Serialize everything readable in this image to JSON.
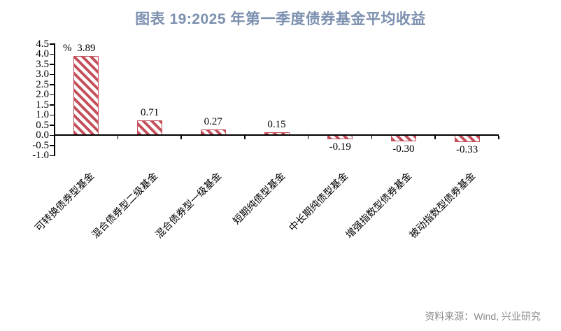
{
  "title": "图表 19:2025 年第一季度债券基金平均收益",
  "source": "资料来源：Wind, 兴业研究",
  "colors": {
    "title": "#7c90af",
    "bar": "#c4505c",
    "axis": "#000000",
    "source": "#8c8c8c",
    "background": "#ffffff"
  },
  "chart_data": {
    "type": "bar",
    "title": "图表 19:2025 年第一季度债券基金平均收益",
    "unit": "%",
    "categories": [
      "可转换债券型基金",
      "混合债券型二级基金",
      "混合债券型一级基金",
      "短期纯债型基金",
      "中长期纯债型基金",
      "增强指数型债券基金",
      "被动指数型债券基金"
    ],
    "values": [
      3.89,
      0.71,
      0.27,
      0.15,
      -0.19,
      -0.3,
      -0.33
    ],
    "value_labels": [
      "3.89",
      "0.71",
      "0.27",
      "0.15",
      "-0.19",
      "-0.30",
      "-0.33"
    ],
    "ylabel": "%",
    "xlabel": "",
    "ylim": [
      -1.0,
      4.5
    ],
    "ytick_step": 0.5,
    "yticks": [
      "4.5",
      "4.0",
      "3.5",
      "3.0",
      "2.5",
      "2.0",
      "1.5",
      "1.0",
      "0.5",
      "0.0",
      "-0.5",
      "-1.0"
    ],
    "grid": false,
    "legend": false,
    "bar_fill": "diagonal-hatch-backslash",
    "category_label_rotation_deg": 45
  }
}
